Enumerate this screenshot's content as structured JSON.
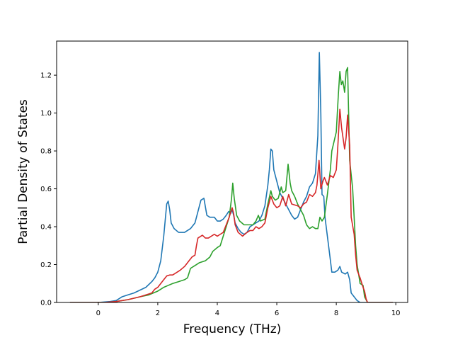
{
  "chart_data": {
    "type": "line",
    "title": "",
    "xlabel": "Frequency (THz)",
    "ylabel": "Partial Density of States",
    "xlim": [
      -1.4,
      10.4
    ],
    "ylim": [
      0.0,
      1.38
    ],
    "xticks": [
      0,
      2,
      4,
      6,
      8,
      10
    ],
    "yticks": [
      0.0,
      0.2,
      0.4,
      0.6,
      0.8,
      1.0,
      1.2
    ],
    "xtick_labels": [
      "0",
      "2",
      "4",
      "6",
      "8",
      "10"
    ],
    "ytick_labels": [
      "0.0",
      "0.2",
      "0.4",
      "0.6",
      "0.8",
      "1.0",
      "1.2"
    ],
    "grid": false,
    "legend": null,
    "series": [
      {
        "color": "#1f77b4",
        "points": [
          [
            -0.95,
            0.0
          ],
          [
            0.0,
            0.0
          ],
          [
            0.4,
            0.005
          ],
          [
            0.6,
            0.01
          ],
          [
            0.7,
            0.02
          ],
          [
            0.8,
            0.03
          ],
          [
            1.0,
            0.04
          ],
          [
            1.2,
            0.05
          ],
          [
            1.4,
            0.065
          ],
          [
            1.6,
            0.08
          ],
          [
            1.8,
            0.11
          ],
          [
            1.9,
            0.13
          ],
          [
            2.0,
            0.16
          ],
          [
            2.1,
            0.22
          ],
          [
            2.2,
            0.35
          ],
          [
            2.3,
            0.52
          ],
          [
            2.35,
            0.535
          ],
          [
            2.4,
            0.49
          ],
          [
            2.45,
            0.42
          ],
          [
            2.55,
            0.39
          ],
          [
            2.7,
            0.37
          ],
          [
            2.9,
            0.37
          ],
          [
            3.1,
            0.39
          ],
          [
            3.25,
            0.42
          ],
          [
            3.35,
            0.48
          ],
          [
            3.45,
            0.54
          ],
          [
            3.55,
            0.55
          ],
          [
            3.65,
            0.46
          ],
          [
            3.75,
            0.45
          ],
          [
            3.9,
            0.45
          ],
          [
            4.0,
            0.43
          ],
          [
            4.1,
            0.43
          ],
          [
            4.2,
            0.44
          ],
          [
            4.3,
            0.46
          ],
          [
            4.38,
            0.48
          ],
          [
            4.45,
            0.47
          ],
          [
            4.5,
            0.49
          ],
          [
            4.55,
            0.46
          ],
          [
            4.6,
            0.42
          ],
          [
            4.7,
            0.39
          ],
          [
            4.8,
            0.37
          ],
          [
            4.9,
            0.36
          ],
          [
            5.0,
            0.37
          ],
          [
            5.1,
            0.4
          ],
          [
            5.2,
            0.41
          ],
          [
            5.3,
            0.42
          ],
          [
            5.4,
            0.43
          ],
          [
            5.5,
            0.46
          ],
          [
            5.6,
            0.51
          ],
          [
            5.7,
            0.62
          ],
          [
            5.75,
            0.7
          ],
          [
            5.8,
            0.81
          ],
          [
            5.85,
            0.8
          ],
          [
            5.9,
            0.7
          ],
          [
            6.0,
            0.64
          ],
          [
            6.1,
            0.58
          ],
          [
            6.2,
            0.55
          ],
          [
            6.3,
            0.52
          ],
          [
            6.4,
            0.49
          ],
          [
            6.5,
            0.46
          ],
          [
            6.6,
            0.44
          ],
          [
            6.7,
            0.45
          ],
          [
            6.8,
            0.49
          ],
          [
            6.9,
            0.53
          ],
          [
            7.0,
            0.56
          ],
          [
            7.1,
            0.61
          ],
          [
            7.2,
            0.63
          ],
          [
            7.3,
            0.68
          ],
          [
            7.38,
            0.88
          ],
          [
            7.43,
            1.32
          ],
          [
            7.48,
            1.0
          ],
          [
            7.52,
            0.57
          ],
          [
            7.58,
            0.56
          ],
          [
            7.62,
            0.45
          ],
          [
            7.7,
            0.35
          ],
          [
            7.78,
            0.25
          ],
          [
            7.85,
            0.16
          ],
          [
            7.95,
            0.16
          ],
          [
            8.05,
            0.17
          ],
          [
            8.12,
            0.19
          ],
          [
            8.18,
            0.16
          ],
          [
            8.3,
            0.15
          ],
          [
            8.38,
            0.16
          ],
          [
            8.45,
            0.12
          ],
          [
            8.5,
            0.05
          ],
          [
            8.6,
            0.03
          ],
          [
            8.7,
            0.01
          ],
          [
            8.8,
            0.0
          ],
          [
            9.9,
            0.0
          ]
        ]
      },
      {
        "color": "#2ca02c",
        "points": [
          [
            -0.95,
            0.0
          ],
          [
            0.3,
            0.0
          ],
          [
            0.6,
            0.005
          ],
          [
            1.0,
            0.015
          ],
          [
            1.4,
            0.03
          ],
          [
            1.7,
            0.04
          ],
          [
            1.85,
            0.05
          ],
          [
            2.0,
            0.06
          ],
          [
            2.1,
            0.07
          ],
          [
            2.2,
            0.08
          ],
          [
            2.35,
            0.09
          ],
          [
            2.5,
            0.1
          ],
          [
            2.7,
            0.11
          ],
          [
            2.9,
            0.12
          ],
          [
            3.0,
            0.13
          ],
          [
            3.1,
            0.18
          ],
          [
            3.2,
            0.19
          ],
          [
            3.3,
            0.2
          ],
          [
            3.4,
            0.21
          ],
          [
            3.6,
            0.22
          ],
          [
            3.75,
            0.24
          ],
          [
            3.85,
            0.27
          ],
          [
            4.0,
            0.29
          ],
          [
            4.1,
            0.3
          ],
          [
            4.2,
            0.35
          ],
          [
            4.3,
            0.4
          ],
          [
            4.4,
            0.45
          ],
          [
            4.48,
            0.55
          ],
          [
            4.52,
            0.63
          ],
          [
            4.57,
            0.55
          ],
          [
            4.65,
            0.46
          ],
          [
            4.75,
            0.43
          ],
          [
            4.9,
            0.41
          ],
          [
            5.0,
            0.41
          ],
          [
            5.1,
            0.41
          ],
          [
            5.2,
            0.41
          ],
          [
            5.3,
            0.43
          ],
          [
            5.38,
            0.46
          ],
          [
            5.45,
            0.43
          ],
          [
            5.6,
            0.44
          ],
          [
            5.7,
            0.52
          ],
          [
            5.8,
            0.59
          ],
          [
            5.85,
            0.56
          ],
          [
            5.95,
            0.54
          ],
          [
            6.05,
            0.55
          ],
          [
            6.15,
            0.61
          ],
          [
            6.2,
            0.58
          ],
          [
            6.3,
            0.59
          ],
          [
            6.38,
            0.73
          ],
          [
            6.45,
            0.63
          ],
          [
            6.5,
            0.59
          ],
          [
            6.6,
            0.56
          ],
          [
            6.7,
            0.52
          ],
          [
            6.8,
            0.49
          ],
          [
            6.9,
            0.46
          ],
          [
            7.0,
            0.41
          ],
          [
            7.1,
            0.39
          ],
          [
            7.2,
            0.4
          ],
          [
            7.3,
            0.39
          ],
          [
            7.38,
            0.39
          ],
          [
            7.45,
            0.45
          ],
          [
            7.52,
            0.43
          ],
          [
            7.6,
            0.45
          ],
          [
            7.7,
            0.57
          ],
          [
            7.8,
            0.7
          ],
          [
            7.85,
            0.8
          ],
          [
            8.0,
            0.9
          ],
          [
            8.07,
            1.1
          ],
          [
            8.12,
            1.22
          ],
          [
            8.17,
            1.15
          ],
          [
            8.22,
            1.17
          ],
          [
            8.28,
            1.11
          ],
          [
            8.33,
            1.22
          ],
          [
            8.38,
            1.24
          ],
          [
            8.45,
            0.75
          ],
          [
            8.55,
            0.6
          ],
          [
            8.65,
            0.3
          ],
          [
            8.7,
            0.2
          ],
          [
            8.8,
            0.1
          ],
          [
            8.9,
            0.09
          ],
          [
            8.95,
            0.03
          ],
          [
            9.05,
            0.0
          ],
          [
            9.9,
            0.0
          ]
        ]
      },
      {
        "color": "#d62728",
        "points": [
          [
            -0.95,
            0.0
          ],
          [
            0.2,
            0.0
          ],
          [
            0.6,
            0.005
          ],
          [
            1.0,
            0.015
          ],
          [
            1.4,
            0.03
          ],
          [
            1.7,
            0.045
          ],
          [
            1.8,
            0.05
          ],
          [
            1.9,
            0.07
          ],
          [
            2.0,
            0.08
          ],
          [
            2.1,
            0.1
          ],
          [
            2.2,
            0.12
          ],
          [
            2.3,
            0.14
          ],
          [
            2.4,
            0.145
          ],
          [
            2.5,
            0.145
          ],
          [
            2.6,
            0.155
          ],
          [
            2.75,
            0.17
          ],
          [
            2.9,
            0.19
          ],
          [
            3.0,
            0.21
          ],
          [
            3.05,
            0.22
          ],
          [
            3.15,
            0.24
          ],
          [
            3.25,
            0.25
          ],
          [
            3.3,
            0.3
          ],
          [
            3.35,
            0.34
          ],
          [
            3.5,
            0.355
          ],
          [
            3.6,
            0.34
          ],
          [
            3.7,
            0.34
          ],
          [
            3.8,
            0.35
          ],
          [
            3.9,
            0.36
          ],
          [
            4.0,
            0.35
          ],
          [
            4.1,
            0.36
          ],
          [
            4.2,
            0.37
          ],
          [
            4.3,
            0.41
          ],
          [
            4.4,
            0.45
          ],
          [
            4.5,
            0.5
          ],
          [
            4.55,
            0.47
          ],
          [
            4.6,
            0.41
          ],
          [
            4.7,
            0.37
          ],
          [
            4.85,
            0.35
          ],
          [
            5.0,
            0.37
          ],
          [
            5.1,
            0.38
          ],
          [
            5.2,
            0.38
          ],
          [
            5.3,
            0.4
          ],
          [
            5.4,
            0.39
          ],
          [
            5.5,
            0.4
          ],
          [
            5.6,
            0.42
          ],
          [
            5.7,
            0.5
          ],
          [
            5.8,
            0.56
          ],
          [
            5.9,
            0.52
          ],
          [
            6.0,
            0.5
          ],
          [
            6.1,
            0.51
          ],
          [
            6.2,
            0.56
          ],
          [
            6.3,
            0.51
          ],
          [
            6.4,
            0.57
          ],
          [
            6.5,
            0.52
          ],
          [
            6.7,
            0.51
          ],
          [
            6.8,
            0.5
          ],
          [
            6.9,
            0.52
          ],
          [
            7.0,
            0.53
          ],
          [
            7.1,
            0.57
          ],
          [
            7.2,
            0.56
          ],
          [
            7.3,
            0.58
          ],
          [
            7.35,
            0.62
          ],
          [
            7.42,
            0.75
          ],
          [
            7.48,
            0.6
          ],
          [
            7.55,
            0.64
          ],
          [
            7.6,
            0.66
          ],
          [
            7.7,
            0.62
          ],
          [
            7.8,
            0.67
          ],
          [
            7.9,
            0.66
          ],
          [
            8.0,
            0.7
          ],
          [
            8.05,
            0.82
          ],
          [
            8.12,
            1.02
          ],
          [
            8.18,
            0.92
          ],
          [
            8.28,
            0.81
          ],
          [
            8.33,
            0.87
          ],
          [
            8.38,
            0.99
          ],
          [
            8.45,
            0.83
          ],
          [
            8.5,
            0.45
          ],
          [
            8.6,
            0.36
          ],
          [
            8.65,
            0.25
          ],
          [
            8.7,
            0.17
          ],
          [
            8.8,
            0.13
          ],
          [
            8.9,
            0.08
          ],
          [
            8.95,
            0.06
          ],
          [
            9.0,
            0.02
          ],
          [
            9.05,
            0.0
          ],
          [
            9.9,
            0.0
          ]
        ]
      }
    ]
  }
}
